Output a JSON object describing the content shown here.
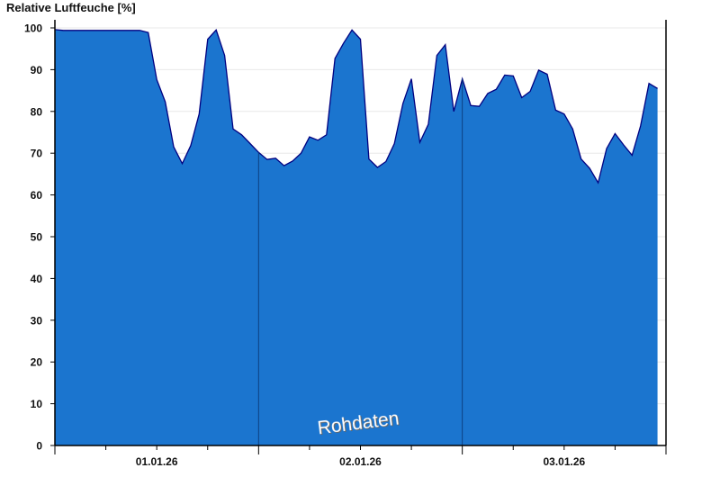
{
  "chart_data": {
    "type": "area",
    "title": "Relative Luftfeuche [%]",
    "ylabel": "",
    "xlabel": "",
    "ylim": [
      0,
      100
    ],
    "yticks": [
      0,
      10,
      20,
      30,
      40,
      50,
      60,
      70,
      80,
      90,
      100
    ],
    "xlim": [
      "01.01.26 00:00",
      "04.01.26 00:00"
    ],
    "xtick_labels": [
      {
        "label": "01.01.26",
        "at": "01.01.26 12:00"
      },
      {
        "label": "02.01.26",
        "at": "02.01.26 12:00"
      },
      {
        "label": "03.01.26",
        "at": "03.01.26 12:00"
      }
    ],
    "grid": true,
    "annotation": "Rohdaten",
    "colors": {
      "fill": "#1b75cf",
      "line": "#000080",
      "day_separator": "#0d3f80",
      "grid": "#e8e8e8"
    },
    "series": [
      {
        "points": [
          [
            "01.01.26 00:00",
            99.6
          ],
          [
            "01.01.26 01:00",
            99.4
          ],
          [
            "01.01.26 02:00",
            99.4
          ],
          [
            "01.01.26 03:00",
            99.4
          ],
          [
            "01.01.26 04:00",
            99.4
          ],
          [
            "01.01.26 05:00",
            99.4
          ],
          [
            "01.01.26 06:00",
            99.4
          ],
          [
            "01.01.26 07:00",
            99.4
          ],
          [
            "01.01.26 08:00",
            99.4
          ],
          [
            "01.01.26 09:00",
            99.4
          ],
          [
            "01.01.26 10:00",
            99.4
          ],
          [
            "01.01.26 11:00",
            98.9
          ],
          [
            "01.01.26 12:00",
            87.6
          ],
          [
            "01.01.26 13:00",
            82.3
          ],
          [
            "01.01.26 14:00",
            71.5
          ],
          [
            "01.01.26 15:00",
            67.5
          ],
          [
            "01.01.26 16:00",
            71.8
          ],
          [
            "01.01.26 17:00",
            79.4
          ],
          [
            "01.01.26 18:00",
            97.3
          ],
          [
            "01.01.26 19:00",
            99.5
          ],
          [
            "01.01.26 20:00",
            93.4
          ],
          [
            "01.01.26 21:00",
            75.8
          ],
          [
            "01.01.26 22:00",
            74.4
          ],
          [
            "01.01.26 23:00",
            72.3
          ],
          [
            "02.01.26 00:00",
            70.2
          ],
          [
            "02.01.26 01:00",
            68.5
          ],
          [
            "02.01.26 02:00",
            68.8
          ],
          [
            "02.01.26 03:00",
            67.0
          ],
          [
            "02.01.26 04:00",
            68.1
          ],
          [
            "02.01.26 05:00",
            70.0
          ],
          [
            "02.01.26 06:00",
            73.9
          ],
          [
            "02.01.26 07:00",
            73.1
          ],
          [
            "02.01.26 08:00",
            74.4
          ],
          [
            "02.01.26 09:00",
            92.7
          ],
          [
            "02.01.26 10:00",
            96.3
          ],
          [
            "02.01.26 11:00",
            99.5
          ],
          [
            "02.01.26 12:00",
            97.3
          ],
          [
            "02.01.26 13:00",
            68.6
          ],
          [
            "02.01.26 14:00",
            66.6
          ],
          [
            "02.01.26 15:00",
            68.0
          ],
          [
            "02.01.26 16:00",
            72.3
          ],
          [
            "02.01.26 17:00",
            81.9
          ],
          [
            "02.01.26 18:00",
            87.8
          ],
          [
            "02.01.26 19:00",
            72.6
          ],
          [
            "02.01.26 20:00",
            76.9
          ],
          [
            "02.01.26 21:00",
            93.4
          ],
          [
            "02.01.26 22:00",
            96.0
          ],
          [
            "02.01.26 23:00",
            80.0
          ],
          [
            "03.01.26 00:00",
            87.8
          ],
          [
            "03.01.26 01:00",
            81.4
          ],
          [
            "03.01.26 02:00",
            81.2
          ],
          [
            "03.01.26 03:00",
            84.3
          ],
          [
            "03.01.26 04:00",
            85.3
          ],
          [
            "03.01.26 05:00",
            88.7
          ],
          [
            "03.01.26 06:00",
            88.5
          ],
          [
            "03.01.26 07:00",
            83.3
          ],
          [
            "03.01.26 08:00",
            84.8
          ],
          [
            "03.01.26 09:00",
            89.9
          ],
          [
            "03.01.26 10:00",
            88.9
          ],
          [
            "03.01.26 11:00",
            80.3
          ],
          [
            "03.01.26 12:00",
            79.4
          ],
          [
            "03.01.26 13:00",
            75.8
          ],
          [
            "03.01.26 14:00",
            68.6
          ],
          [
            "03.01.26 15:00",
            66.4
          ],
          [
            "03.01.26 16:00",
            62.9
          ],
          [
            "03.01.26 17:00",
            71.1
          ],
          [
            "03.01.26 18:00",
            74.7
          ],
          [
            "03.01.26 19:00",
            72.0
          ],
          [
            "03.01.26 20:00",
            69.5
          ],
          [
            "03.01.26 21:00",
            76.5
          ],
          [
            "03.01.26 22:00",
            86.7
          ],
          [
            "03.01.26 23:00",
            85.5
          ]
        ]
      }
    ]
  }
}
